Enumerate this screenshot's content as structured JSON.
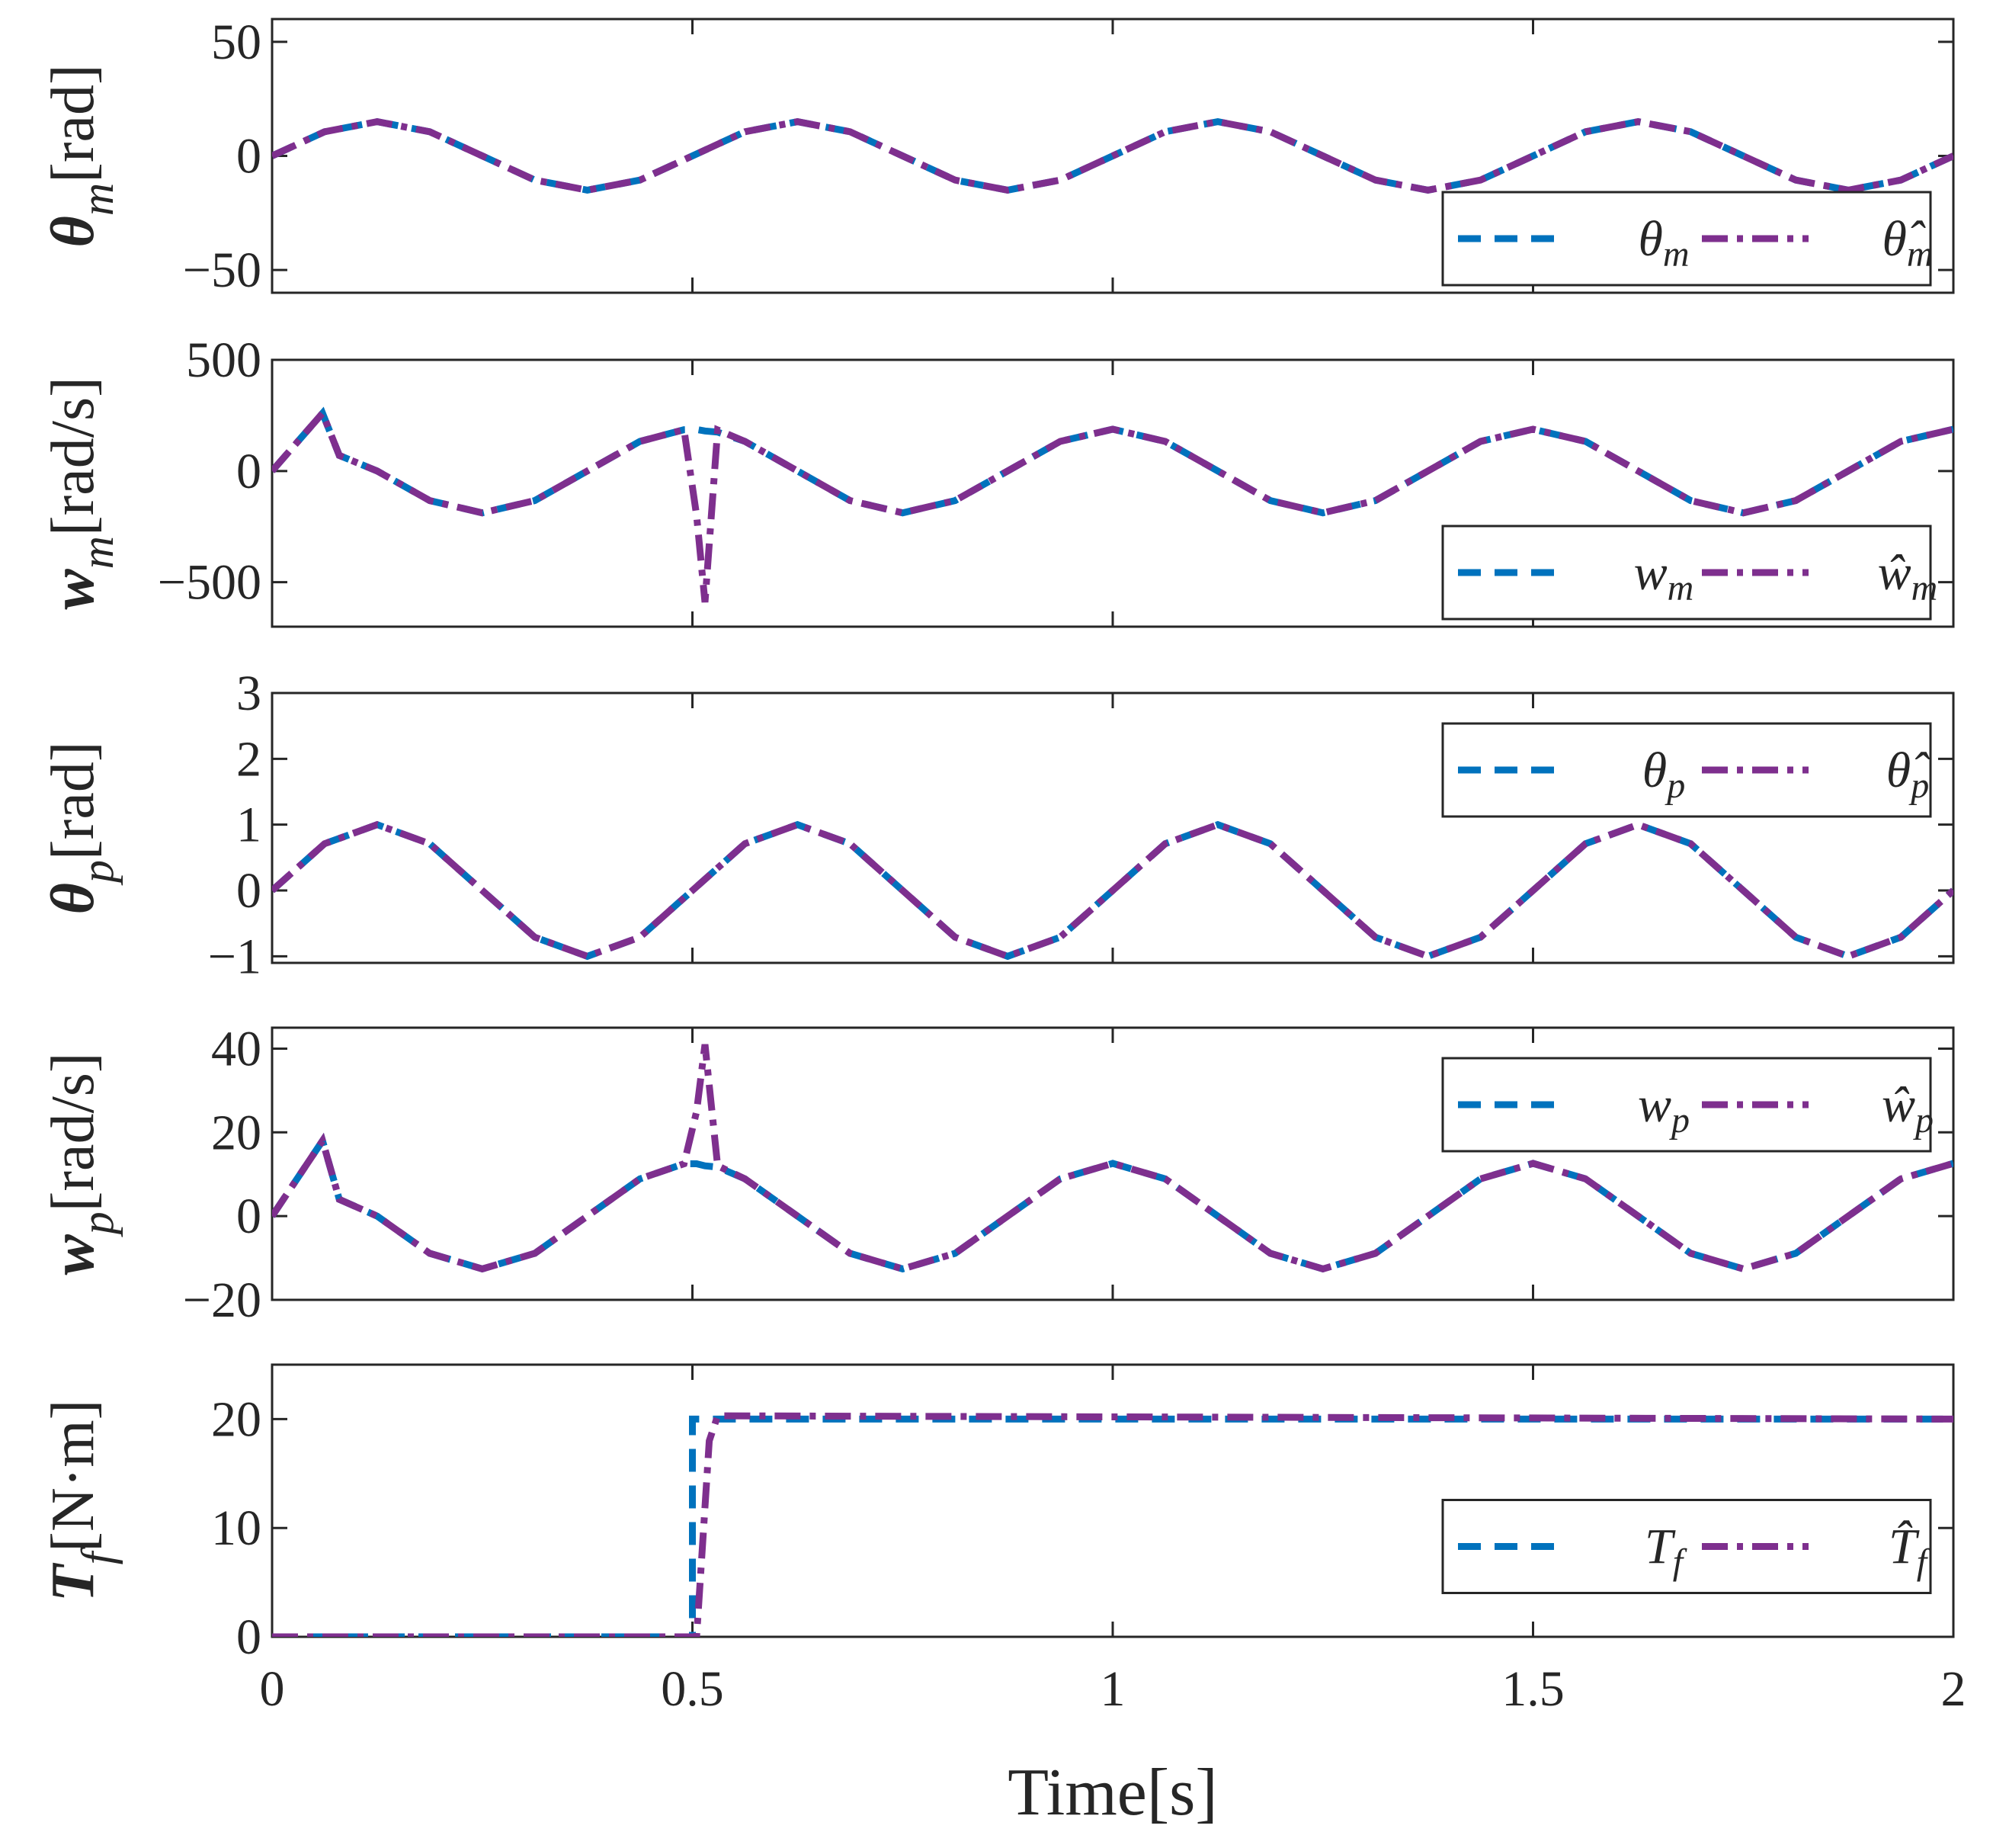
{
  "chart_data": [
    {
      "type": "line",
      "ylabel": "θm[rad]",
      "xlim": [
        0,
        2
      ],
      "ylim": [
        -60,
        60
      ],
      "yticks": [
        {
          "value": -50,
          "label": "−50"
        },
        0,
        50
      ],
      "legend": "lower right",
      "x": [
        0,
        0.0625,
        0.125,
        0.1875,
        0.25,
        0.3125,
        0.375,
        0.4375,
        0.5,
        0.5625,
        0.625,
        0.6875,
        0.75,
        0.8125,
        0.875,
        0.9375,
        1,
        1.0625,
        1.125,
        1.1875,
        1.25,
        1.3125,
        1.375,
        1.4375,
        1.5,
        1.5625,
        1.625,
        1.6875,
        1.75,
        1.8125,
        1.875,
        1.9375,
        2
      ],
      "series": [
        {
          "name": "θm",
          "color": "#0072bd",
          "style": "dashed",
          "values": [
            0,
            10.6,
            15,
            10.6,
            0,
            -10.6,
            -15,
            -10.6,
            0,
            10.6,
            15,
            10.6,
            0,
            -10.6,
            -15,
            -10.6,
            0,
            10.6,
            15,
            10.6,
            0,
            -10.6,
            -15,
            -10.6,
            0,
            10.6,
            15,
            10.6,
            0,
            -10.6,
            -15,
            -10.6,
            0
          ]
        },
        {
          "name": "θ̂m",
          "color": "#7e2f8e",
          "style": "dashdot",
          "values": [
            0,
            10.6,
            15,
            10.6,
            0,
            -10.6,
            -15,
            -10.6,
            0,
            10.6,
            15,
            10.6,
            0,
            -10.6,
            -15,
            -10.6,
            0,
            10.6,
            15,
            10.6,
            0,
            -10.6,
            -15,
            -10.6,
            0,
            10.6,
            15,
            10.6,
            0,
            -10.6,
            -15,
            -10.6,
            0
          ]
        }
      ]
    },
    {
      "type": "line",
      "ylabel": "wm[rad/s]",
      "xlim": [
        0,
        2
      ],
      "ylim": [
        -700,
        500
      ],
      "yticks": [
        {
          "value": -500,
          "label": "−500"
        },
        0,
        500
      ],
      "legend": "lower right",
      "x": [
        0,
        0.06,
        0.08,
        0.125,
        0.1875,
        0.25,
        0.3125,
        0.375,
        0.4375,
        0.49,
        0.505,
        0.515,
        0.53,
        0.5625,
        0.625,
        0.6875,
        0.75,
        0.8125,
        0.875,
        0.9375,
        1,
        1.0625,
        1.125,
        1.1875,
        1.25,
        1.3125,
        1.375,
        1.4375,
        1.5,
        1.5625,
        1.625,
        1.6875,
        1.75,
        1.8125,
        1.875,
        1.9375,
        2
      ],
      "series": [
        {
          "name": "wm",
          "color": "#0072bd",
          "style": "dashed",
          "values": [
            0,
            260,
            70,
            0,
            -133,
            -188,
            -133,
            0,
            133,
            186,
            187,
            180,
            175,
            133,
            0,
            -133,
            -188,
            -133,
            0,
            133,
            188,
            133,
            0,
            -133,
            -188,
            -133,
            0,
            133,
            188,
            133,
            0,
            -133,
            -188,
            -133,
            0,
            133,
            188
          ]
        },
        {
          "name": "ŵm",
          "color": "#7e2f8e",
          "style": "dashdot",
          "values": [
            0,
            260,
            70,
            0,
            -133,
            -188,
            -133,
            0,
            133,
            186,
            -200,
            -590,
            185,
            133,
            0,
            -133,
            -188,
            -133,
            0,
            133,
            188,
            133,
            0,
            -133,
            -188,
            -133,
            0,
            133,
            188,
            133,
            0,
            -133,
            -188,
            -133,
            0,
            133,
            188
          ]
        }
      ]
    },
    {
      "type": "line",
      "ylabel": "θp[rad]",
      "xlim": [
        0,
        2
      ],
      "ylim": [
        -1.1,
        3
      ],
      "yticks": [
        {
          "value": -1,
          "label": "−1"
        },
        0,
        1,
        2,
        3
      ],
      "legend": "upper right",
      "x": [
        0,
        0.0625,
        0.125,
        0.1875,
        0.25,
        0.3125,
        0.375,
        0.4375,
        0.5,
        0.5625,
        0.625,
        0.6875,
        0.75,
        0.8125,
        0.875,
        0.9375,
        1,
        1.0625,
        1.125,
        1.1875,
        1.25,
        1.3125,
        1.375,
        1.4375,
        1.5,
        1.5625,
        1.625,
        1.6875,
        1.75,
        1.8125,
        1.875,
        1.9375,
        2
      ],
      "series": [
        {
          "name": "θp",
          "color": "#0072bd",
          "style": "dashed",
          "values": [
            0,
            0.71,
            1,
            0.71,
            0,
            -0.71,
            -1,
            -0.71,
            0,
            0.71,
            1,
            0.71,
            0,
            -0.71,
            -1,
            -0.71,
            0,
            0.71,
            1,
            0.71,
            0,
            -0.71,
            -1,
            -0.71,
            0,
            0.71,
            1,
            0.71,
            0,
            -0.71,
            -1,
            -0.71,
            0
          ]
        },
        {
          "name": "θ̂p",
          "color": "#7e2f8e",
          "style": "dashdot",
          "values": [
            0,
            0.71,
            1,
            0.71,
            0,
            -0.71,
            -1,
            -0.71,
            0,
            0.71,
            1,
            0.71,
            0,
            -0.71,
            -1,
            -0.71,
            0,
            0.71,
            1,
            0.71,
            0,
            -0.71,
            -1,
            -0.71,
            0,
            0.71,
            1,
            0.71,
            0,
            -0.71,
            -1,
            -0.71,
            0
          ]
        }
      ]
    },
    {
      "type": "line",
      "ylabel": "wp[rad/s]",
      "xlim": [
        0,
        2
      ],
      "ylim": [
        -20,
        45
      ],
      "yticks": [
        {
          "value": -20,
          "label": "−20"
        },
        0,
        20,
        40
      ],
      "legend": "upper right",
      "x": [
        0,
        0.06,
        0.08,
        0.125,
        0.1875,
        0.25,
        0.3125,
        0.375,
        0.4375,
        0.49,
        0.505,
        0.515,
        0.53,
        0.5625,
        0.625,
        0.6875,
        0.75,
        0.8125,
        0.875,
        0.9375,
        1,
        1.0625,
        1.125,
        1.1875,
        1.25,
        1.3125,
        1.375,
        1.4375,
        1.5,
        1.5625,
        1.625,
        1.6875,
        1.75,
        1.8125,
        1.875,
        1.9375,
        2
      ],
      "series": [
        {
          "name": "wp",
          "color": "#0072bd",
          "style": "dashed",
          "values": [
            0,
            18,
            4,
            0,
            -8.9,
            -12.6,
            -8.9,
            0,
            8.9,
            12.5,
            12.5,
            12,
            11.7,
            8.9,
            0,
            -8.9,
            -12.6,
            -8.9,
            0,
            8.9,
            12.6,
            8.9,
            0,
            -8.9,
            -12.6,
            -8.9,
            0,
            8.9,
            12.6,
            8.9,
            0,
            -8.9,
            -12.6,
            -8.9,
            0,
            8.9,
            12.6
          ]
        },
        {
          "name": "ŵp",
          "color": "#7e2f8e",
          "style": "dashdot",
          "values": [
            0,
            18,
            4,
            0,
            -8.9,
            -12.6,
            -8.9,
            0,
            8.9,
            12.5,
            25,
            41,
            12,
            8.9,
            0,
            -8.9,
            -12.6,
            -8.9,
            0,
            8.9,
            12.6,
            8.9,
            0,
            -8.9,
            -12.6,
            -8.9,
            0,
            8.9,
            12.6,
            8.9,
            0,
            -8.9,
            -12.6,
            -8.9,
            0,
            8.9,
            12.6
          ]
        }
      ]
    },
    {
      "type": "line",
      "ylabel": "Tf[N·m]",
      "xlabel": "Time[s]",
      "xlim": [
        0,
        2
      ],
      "ylim": [
        0,
        25
      ],
      "xticks": [
        0,
        0.5,
        1,
        1.5,
        2
      ],
      "yticks": [
        0,
        10,
        20
      ],
      "legend": "right",
      "x": [
        0,
        0.5,
        0.5,
        0.505,
        0.52,
        0.53,
        2
      ],
      "series": [
        {
          "name": "Tf",
          "color": "#0072bd",
          "style": "dashed",
          "values": [
            0,
            0,
            20,
            20,
            20,
            20,
            20
          ]
        },
        {
          "name": "T̂f",
          "color": "#7e2f8e",
          "style": "dashdot",
          "values": [
            0,
            0,
            0,
            0,
            18,
            20.3,
            20
          ]
        }
      ]
    }
  ]
}
